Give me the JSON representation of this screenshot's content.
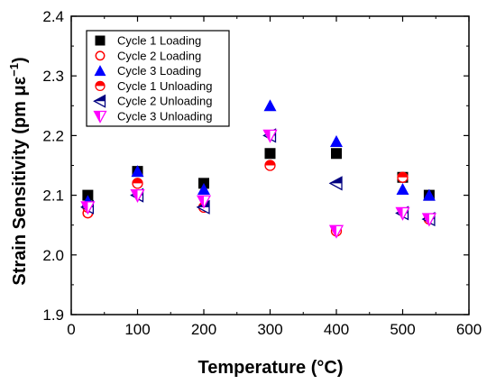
{
  "chart_data": {
    "type": "scatter",
    "xlabel": "Temperature (°C)",
    "ylabel_main": "Strain Sensitivity (pm με",
    "ylabel_sup": "−1",
    "ylabel_close": ")",
    "xlim": [
      0,
      600
    ],
    "ylim": [
      1.9,
      2.4
    ],
    "xticks": [
      0,
      100,
      200,
      300,
      400,
      500,
      600
    ],
    "yticks": [
      1.9,
      2.0,
      2.1,
      2.2,
      2.3,
      2.4
    ],
    "ytick_labels": [
      "1.9",
      "2.0",
      "2.1",
      "2.2",
      "2.3",
      "2.4"
    ],
    "grid": false,
    "legend_position": "top-left",
    "series": [
      {
        "name": "Cycle 1 Loading",
        "marker": "square",
        "color": "#000000",
        "x": [
          25,
          100,
          200,
          300,
          400,
          500,
          540
        ],
        "y": [
          2.1,
          2.14,
          2.12,
          2.17,
          2.17,
          2.13,
          2.1
        ]
      },
      {
        "name": "Cycle 2 Loading",
        "marker": "circle-open",
        "color": "#ff0000",
        "x": [
          25,
          100,
          200,
          300,
          400,
          500,
          540
        ],
        "y": [
          2.07,
          2.12,
          2.08,
          2.15,
          2.04,
          2.13,
          2.06
        ]
      },
      {
        "name": "Cycle 3 Loading",
        "marker": "triangle-up",
        "color": "#0000ff",
        "x": [
          25,
          100,
          200,
          300,
          400,
          500,
          540
        ],
        "y": [
          2.09,
          2.14,
          2.11,
          2.25,
          2.19,
          2.11,
          2.1
        ]
      },
      {
        "name": "Cycle 1 Unloading",
        "marker": "circle-half",
        "color": "#ff0000",
        "x": [
          25,
          100,
          200,
          300,
          400,
          500,
          540
        ],
        "y": [
          2.08,
          2.12,
          2.08,
          2.15,
          2.04,
          2.13,
          2.06
        ]
      },
      {
        "name": "Cycle 2 Unloading",
        "marker": "triangle-left-half",
        "color": "#000080",
        "x": [
          25,
          100,
          200,
          300,
          400,
          500,
          540
        ],
        "y": [
          2.08,
          2.1,
          2.08,
          2.2,
          2.12,
          2.07,
          2.06
        ]
      },
      {
        "name": "Cycle 3 Unloading",
        "marker": "triangle-down-half",
        "color": "#ff00ff",
        "x": [
          25,
          100,
          200,
          300,
          400,
          500,
          540
        ],
        "y": [
          2.08,
          2.1,
          2.09,
          2.2,
          2.04,
          2.07,
          2.06
        ]
      }
    ]
  }
}
